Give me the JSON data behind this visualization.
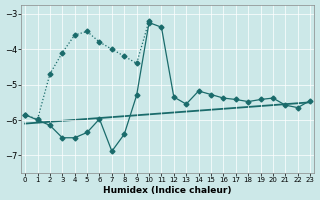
{
  "xlabel": "Humidex (Indice chaleur)",
  "xlim_min": -0.3,
  "xlim_max": 23.3,
  "ylim_min": -7.5,
  "ylim_max": -2.75,
  "yticks": [
    -7,
    -6,
    -5,
    -4,
    -3
  ],
  "xticks": [
    0,
    1,
    2,
    3,
    4,
    5,
    6,
    7,
    8,
    9,
    10,
    11,
    12,
    13,
    14,
    15,
    16,
    17,
    18,
    19,
    20,
    21,
    22,
    23
  ],
  "bg_color": "#cce8e8",
  "line_color": "#1a6b6b",
  "grid_color": "#b0d0d0",
  "dotted_x": [
    0,
    1,
    2,
    3,
    4,
    5,
    6,
    7,
    8,
    9,
    10
  ],
  "dotted_y": [
    -5.85,
    -5.98,
    -4.7,
    -4.1,
    -3.6,
    -3.5,
    -3.8,
    -4.0,
    -4.2,
    -4.4,
    -3.2
  ],
  "solid_x": [
    0,
    1,
    2,
    3,
    4,
    5,
    6,
    7,
    8,
    9,
    10,
    11,
    12,
    13,
    14,
    15,
    16,
    17,
    18,
    19,
    20,
    21,
    22,
    23
  ],
  "solid_y": [
    -5.85,
    -6.0,
    -6.15,
    -6.5,
    -6.5,
    -6.35,
    -5.97,
    -6.88,
    -6.4,
    -5.3,
    -3.25,
    -3.38,
    -5.35,
    -5.55,
    -5.18,
    -5.28,
    -5.38,
    -5.42,
    -5.48,
    -5.42,
    -5.38,
    -5.58,
    -5.65,
    -5.45
  ],
  "trend_x": [
    0,
    23
  ],
  "trend_y": [
    -6.1,
    -5.5
  ],
  "marker": "D",
  "marker_size": 2.5
}
